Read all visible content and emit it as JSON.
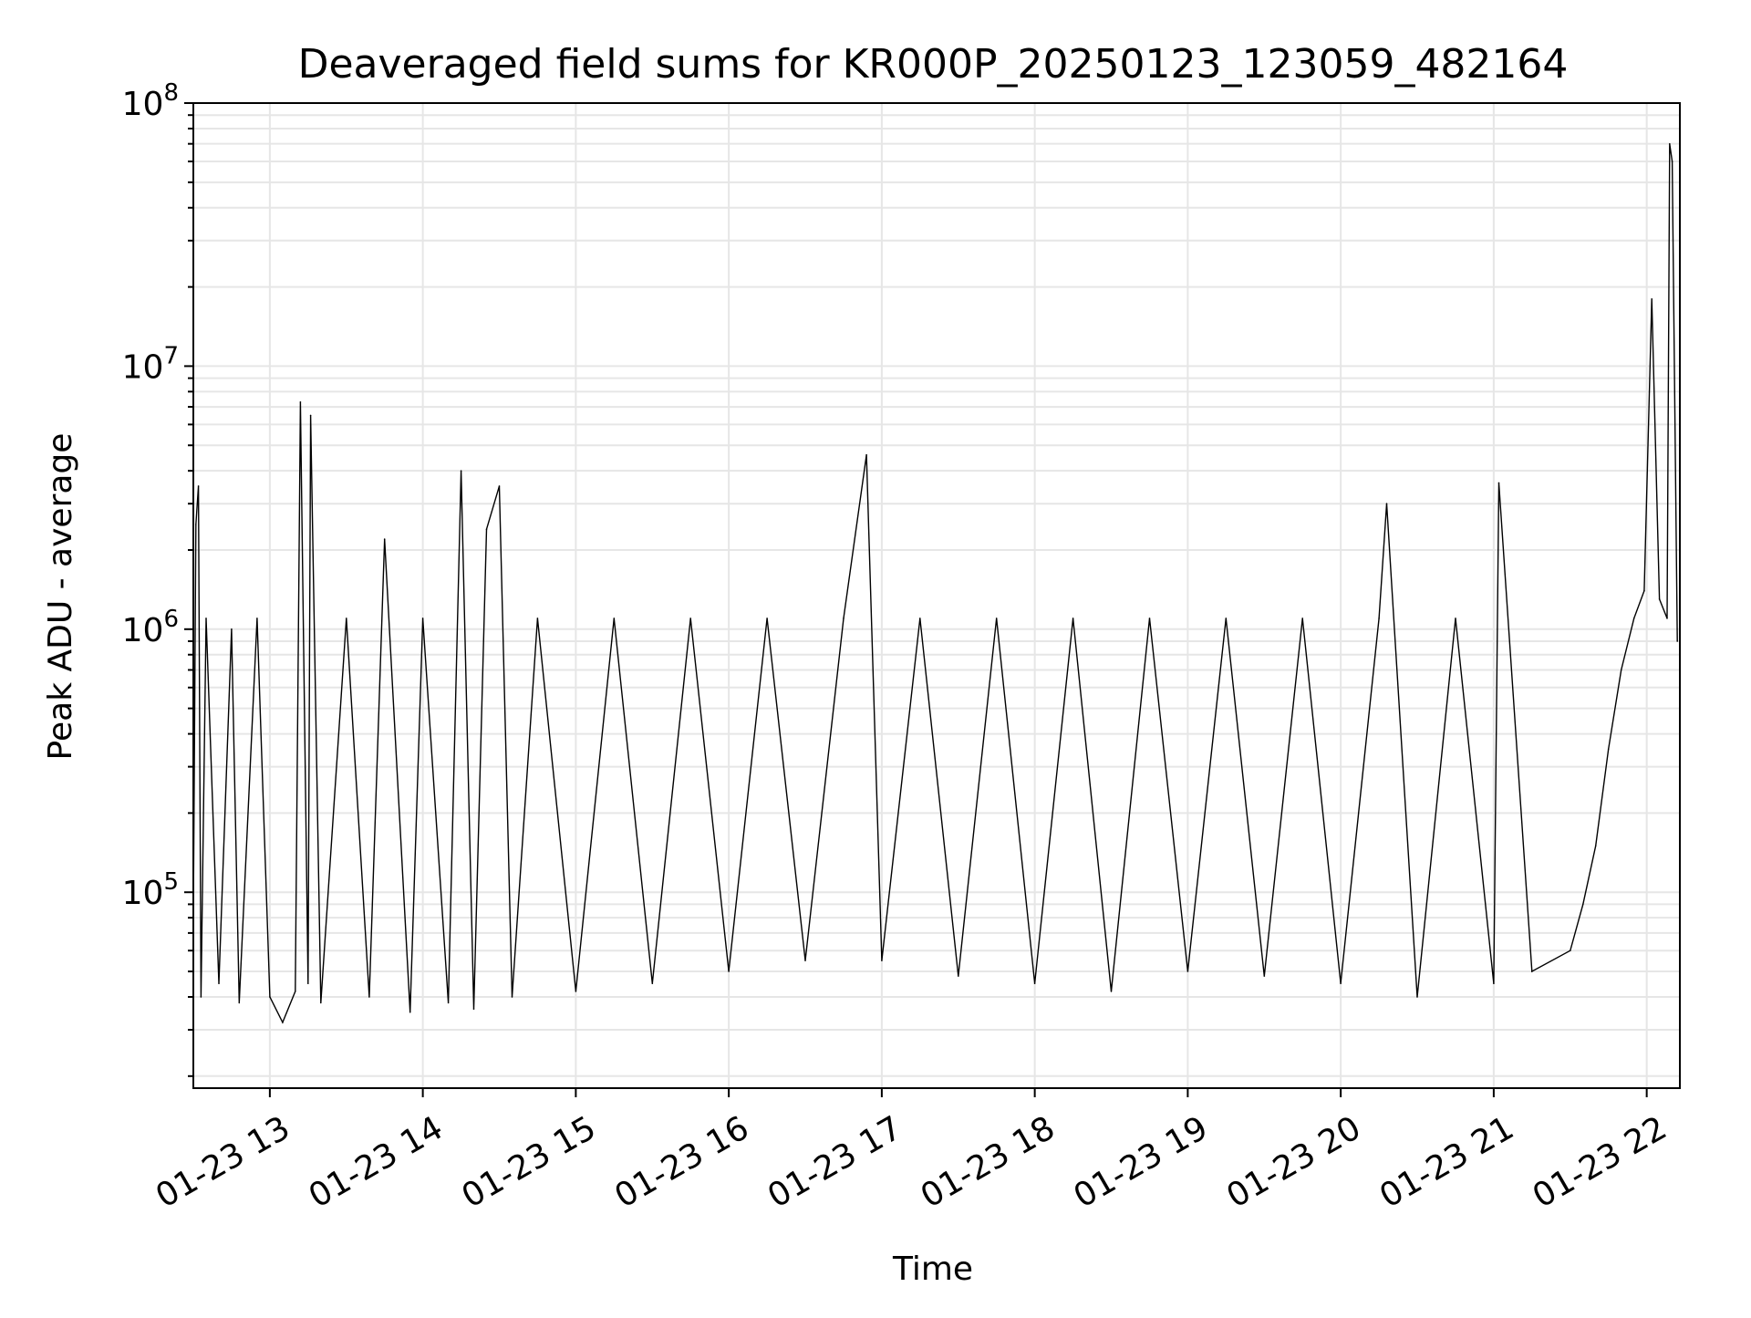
{
  "chart_data": {
    "type": "line",
    "title": "Deaveraged field sums for KR000P_20250123_123059_482164",
    "xlabel": "Time",
    "ylabel": "Peak ADU - average",
    "xlim": [
      "2025-01-23 12:30",
      "2025-01-23 22:13"
    ],
    "ylim": [
      18000,
      100000000
    ],
    "yscale": "log",
    "grid": true,
    "line_color": "#000000",
    "grid_color": "#e6e6e6",
    "x_ticks": [
      {
        "value": "2025-01-23 13:00",
        "label": "01-23 13"
      },
      {
        "value": "2025-01-23 14:00",
        "label": "01-23 14"
      },
      {
        "value": "2025-01-23 15:00",
        "label": "01-23 15"
      },
      {
        "value": "2025-01-23 16:00",
        "label": "01-23 16"
      },
      {
        "value": "2025-01-23 17:00",
        "label": "01-23 17"
      },
      {
        "value": "2025-01-23 18:00",
        "label": "01-23 18"
      },
      {
        "value": "2025-01-23 19:00",
        "label": "01-23 19"
      },
      {
        "value": "2025-01-23 20:00",
        "label": "01-23 20"
      },
      {
        "value": "2025-01-23 21:00",
        "label": "01-23 21"
      },
      {
        "value": "2025-01-23 22:00",
        "label": "01-23 22"
      }
    ],
    "y_ticks": [
      {
        "value": 100000,
        "base": "10",
        "exp": "5"
      },
      {
        "value": 1000000,
        "base": "10",
        "exp": "6"
      },
      {
        "value": 10000000,
        "base": "10",
        "exp": "7"
      },
      {
        "value": 100000000,
        "base": "10",
        "exp": "8"
      }
    ],
    "series": [
      {
        "x": [
          "2025-01-23 12:30",
          "2025-01-23 12:31",
          "2025-01-23 12:32",
          "2025-01-23 12:33",
          "2025-01-23 12:35",
          "2025-01-23 12:40",
          "2025-01-23 12:45",
          "2025-01-23 12:48",
          "2025-01-23 12:55",
          "2025-01-23 13:00",
          "2025-01-23 13:05",
          "2025-01-23 13:10",
          "2025-01-23 13:12",
          "2025-01-23 13:15",
          "2025-01-23 13:16",
          "2025-01-23 13:20",
          "2025-01-23 13:30",
          "2025-01-23 13:39",
          "2025-01-23 13:45",
          "2025-01-23 13:55",
          "2025-01-23 14:00",
          "2025-01-23 14:10",
          "2025-01-23 14:15",
          "2025-01-23 14:20",
          "2025-01-23 14:25",
          "2025-01-23 14:30",
          "2025-01-23 14:35",
          "2025-01-23 14:45",
          "2025-01-23 15:00",
          "2025-01-23 15:15",
          "2025-01-23 15:30",
          "2025-01-23 15:45",
          "2025-01-23 16:00",
          "2025-01-23 16:15",
          "2025-01-23 16:30",
          "2025-01-23 16:45",
          "2025-01-23 16:54",
          "2025-01-23 17:00",
          "2025-01-23 17:15",
          "2025-01-23 17:30",
          "2025-01-23 17:45",
          "2025-01-23 18:00",
          "2025-01-23 18:15",
          "2025-01-23 18:30",
          "2025-01-23 18:45",
          "2025-01-23 19:00",
          "2025-01-23 19:15",
          "2025-01-23 19:30",
          "2025-01-23 19:45",
          "2025-01-23 20:00",
          "2025-01-23 20:15",
          "2025-01-23 20:18",
          "2025-01-23 20:30",
          "2025-01-23 20:45",
          "2025-01-23 21:00",
          "2025-01-23 21:02",
          "2025-01-23 21:15",
          "2025-01-23 21:30",
          "2025-01-23 21:35",
          "2025-01-23 21:40",
          "2025-01-23 21:45",
          "2025-01-23 21:50",
          "2025-01-23 21:55",
          "2025-01-23 21:59",
          "2025-01-23 22:02",
          "2025-01-23 22:05",
          "2025-01-23 22:08",
          "2025-01-23 22:09",
          "2025-01-23 22:10",
          "2025-01-23 22:12"
        ],
        "y": [
          80000,
          2500000,
          3500000,
          40000,
          1100000,
          45000,
          1000000,
          38000,
          1100000,
          40000,
          32000,
          42000,
          7300000,
          45000,
          6500000,
          38000,
          1100000,
          40000,
          2200000,
          35000,
          1100000,
          38000,
          4000000,
          36000,
          2400000,
          3500000,
          40000,
          1100000,
          42000,
          1100000,
          45000,
          1100000,
          50000,
          1100000,
          55000,
          1100000,
          4600000,
          55000,
          1100000,
          48000,
          1100000,
          45000,
          1100000,
          42000,
          1100000,
          50000,
          1100000,
          48000,
          1100000,
          45000,
          1100000,
          3000000,
          40000,
          1100000,
          45000,
          3600000,
          50000,
          60000,
          90000,
          150000,
          350000,
          700000,
          1100000,
          1400000,
          18000000,
          1300000,
          1100000,
          70000000,
          60000000,
          900000
        ]
      }
    ]
  }
}
